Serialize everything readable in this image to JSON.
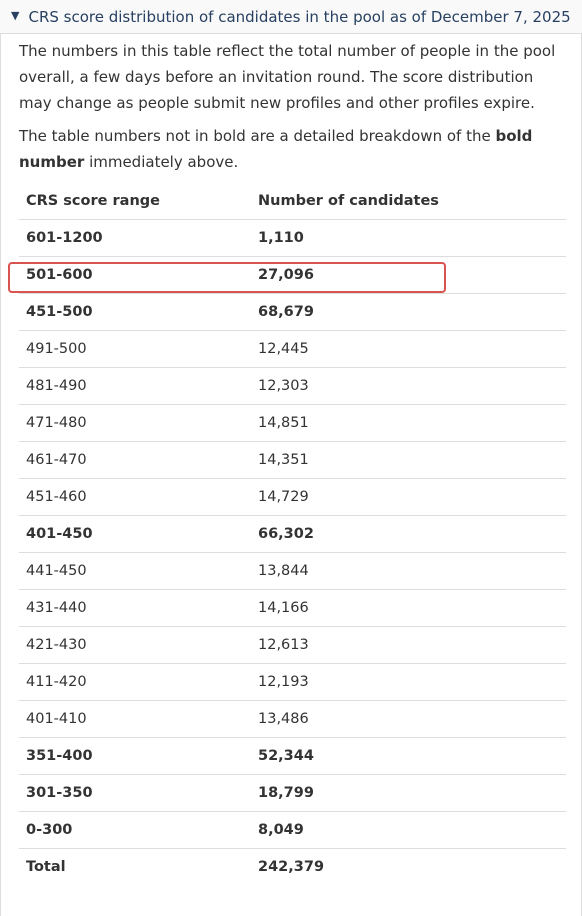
{
  "summary": {
    "toggle_icon": "triangle-down-icon",
    "title": "CRS score distribution of candidates in the pool as of December 7, 2025"
  },
  "intro": {
    "paragraph1": "The numbers in this table reflect the total number of people in the pool overall, a few days before an invitation round. The score distribution may change as people submit new profiles and other profiles expire.",
    "paragraph2_prefix": "The table numbers not in bold are a detailed breakdown of the ",
    "paragraph2_bold": "bold number",
    "paragraph2_suffix": " immediately above."
  },
  "table": {
    "headers": [
      "CRS score range",
      "Number of candidates"
    ],
    "rows": [
      {
        "range": "601-1200",
        "count": "1,110",
        "bold": true
      },
      {
        "range": "501-600",
        "count": "27,096",
        "bold": true,
        "highlighted": true
      },
      {
        "range": "451-500",
        "count": "68,679",
        "bold": true
      },
      {
        "range": "491-500",
        "count": "12,445",
        "bold": false
      },
      {
        "range": "481-490",
        "count": "12,303",
        "bold": false
      },
      {
        "range": "471-480",
        "count": "14,851",
        "bold": false
      },
      {
        "range": "461-470",
        "count": "14,351",
        "bold": false
      },
      {
        "range": "451-460",
        "count": "14,729",
        "bold": false
      },
      {
        "range": "401-450",
        "count": "66,302",
        "bold": true
      },
      {
        "range": "441-450",
        "count": "13,844",
        "bold": false
      },
      {
        "range": "431-440",
        "count": "14,166",
        "bold": false
      },
      {
        "range": "421-430",
        "count": "12,613",
        "bold": false
      },
      {
        "range": "411-420",
        "count": "12,193",
        "bold": false
      },
      {
        "range": "401-410",
        "count": "13,486",
        "bold": false
      },
      {
        "range": "351-400",
        "count": "52,344",
        "bold": true
      },
      {
        "range": "301-350",
        "count": "18,799",
        "bold": true
      },
      {
        "range": "0-300",
        "count": "8,049",
        "bold": true
      },
      {
        "range": "Total",
        "count": "242,379",
        "bold": true
      }
    ]
  },
  "colors": {
    "summary_text": "#284162",
    "highlight_border": "#d9534f",
    "row_border": "#dddddd"
  }
}
